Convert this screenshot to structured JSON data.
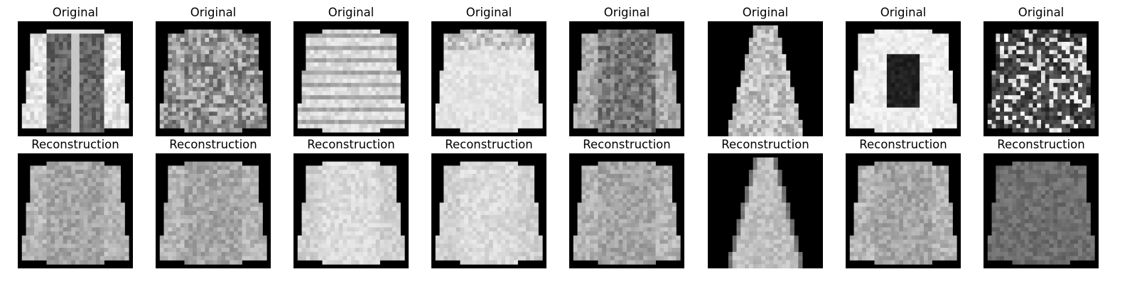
{
  "figure": {
    "columns": [
      {
        "original": {
          "title": "Original",
          "garment": "zip-jacket"
        },
        "reconstruction": {
          "title": "Reconstruction",
          "garment": "sweater-blur"
        }
      },
      {
        "original": {
          "title": "Original",
          "garment": "patterned-sweater"
        },
        "reconstruction": {
          "title": "Reconstruction",
          "garment": "sweater-blur"
        }
      },
      {
        "original": {
          "title": "Original",
          "garment": "striped-wide-top"
        },
        "reconstruction": {
          "title": "Reconstruction",
          "garment": "sweater-bright-blur"
        }
      },
      {
        "original": {
          "title": "Original",
          "garment": "yoke-sweater"
        },
        "reconstruction": {
          "title": "Reconstruction",
          "garment": "sweater-bright-blur"
        }
      },
      {
        "original": {
          "title": "Original",
          "garment": "hooded-jacket"
        },
        "reconstruction": {
          "title": "Reconstruction",
          "garment": "sweater-blur"
        }
      },
      {
        "original": {
          "title": "Original",
          "garment": "dress"
        },
        "reconstruction": {
          "title": "Reconstruction",
          "garment": "dress-blur"
        }
      },
      {
        "original": {
          "title": "Original",
          "garment": "dark-panel-coat"
        },
        "reconstruction": {
          "title": "Reconstruction",
          "garment": "sweater-blur"
        }
      },
      {
        "original": {
          "title": "Original",
          "garment": "speckled-shirt"
        },
        "reconstruction": {
          "title": "Reconstruction",
          "garment": "sweater-dark-blur"
        }
      }
    ]
  }
}
